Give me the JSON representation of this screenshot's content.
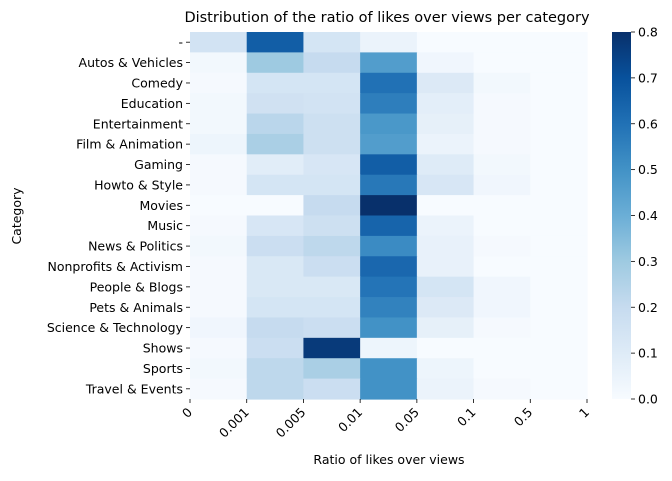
{
  "chart_data": {
    "type": "heatmap",
    "title": "Distribution of the ratio of likes over views per category",
    "xlabel": "Ratio of likes over views",
    "ylabel": "Category",
    "x_bins": [
      "0",
      "0.001",
      "0.005",
      "0.01",
      "0.05",
      "0.1",
      "0.5",
      "1"
    ],
    "categories": [
      "-",
      "Autos & Vehicles",
      "Comedy",
      "Education",
      "Entertainment",
      "Film & Animation",
      "Gaming",
      "Howto & Style",
      "Movies",
      "Music",
      "News & Politics",
      "Nonprofits & Activism",
      "People & Blogs",
      "Pets & Animals",
      "Science & Technology",
      "Shows",
      "Sports",
      "Travel & Events"
    ],
    "values": [
      [
        0.15,
        0.66,
        0.14,
        0.05,
        0.0,
        0.0,
        0.0
      ],
      [
        0.02,
        0.3,
        0.2,
        0.46,
        0.03,
        0.0,
        0.0
      ],
      [
        0.01,
        0.14,
        0.14,
        0.6,
        0.11,
        0.02,
        0.0
      ],
      [
        0.02,
        0.16,
        0.15,
        0.56,
        0.08,
        0.01,
        0.0
      ],
      [
        0.02,
        0.23,
        0.17,
        0.48,
        0.07,
        0.01,
        0.0
      ],
      [
        0.04,
        0.27,
        0.17,
        0.46,
        0.05,
        0.01,
        0.0
      ],
      [
        0.01,
        0.09,
        0.13,
        0.66,
        0.1,
        0.02,
        0.0
      ],
      [
        0.01,
        0.14,
        0.14,
        0.58,
        0.13,
        0.03,
        0.0
      ],
      [
        0.0,
        0.0,
        0.2,
        0.8,
        0.0,
        0.0,
        0.0
      ],
      [
        0.01,
        0.13,
        0.17,
        0.64,
        0.05,
        0.0,
        0.0
      ],
      [
        0.02,
        0.18,
        0.22,
        0.52,
        0.06,
        0.01,
        0.0
      ],
      [
        0.01,
        0.12,
        0.18,
        0.63,
        0.06,
        0.0,
        0.0
      ],
      [
        0.01,
        0.12,
        0.12,
        0.59,
        0.14,
        0.03,
        0.0
      ],
      [
        0.01,
        0.14,
        0.14,
        0.55,
        0.11,
        0.03,
        0.0
      ],
      [
        0.03,
        0.2,
        0.18,
        0.5,
        0.07,
        0.01,
        0.0
      ],
      [
        0.01,
        0.18,
        0.77,
        0.04,
        0.0,
        0.0,
        0.0
      ],
      [
        0.02,
        0.22,
        0.27,
        0.5,
        0.04,
        0.0,
        0.0
      ],
      [
        0.01,
        0.22,
        0.18,
        0.5,
        0.05,
        0.01,
        0.0
      ]
    ],
    "colorbar": {
      "min": 0.0,
      "max": 0.8,
      "ticks": [
        "0.0",
        "0.1",
        "0.2",
        "0.3",
        "0.4",
        "0.5",
        "0.6",
        "0.7",
        "0.8"
      ],
      "colormap": "Blues"
    },
    "grid": false
  }
}
